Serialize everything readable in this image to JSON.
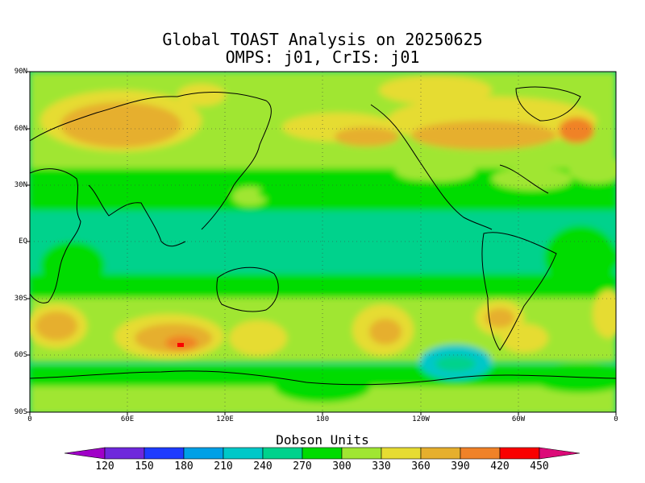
{
  "title": {
    "line1": "Global TOAST Analysis on 20250625",
    "line2": "OMPS: j01, CrIS: j01"
  },
  "colorbar": {
    "units": "Dobson Units",
    "levels": [
      "120",
      "150",
      "180",
      "210",
      "240",
      "270",
      "300",
      "330",
      "360",
      "390",
      "420",
      "450"
    ],
    "colors": [
      "#a000c8",
      "#6e28dc",
      "#1e3cff",
      "#00a0e6",
      "#00c8c8",
      "#00d28c",
      "#00dc00",
      "#a0e632",
      "#e6dc32",
      "#e6af2d",
      "#f08228",
      "#fa0000",
      "#dc0a78"
    ]
  },
  "axes": {
    "lat_labels": [
      "90N",
      "60N",
      "30N",
      "EQ",
      "30S",
      "60S",
      "90S"
    ],
    "lon_labels": [
      "0",
      "60E",
      "120E",
      "180",
      "120W",
      "60W",
      "0"
    ]
  },
  "map": {
    "projection": "cylindrical equidistant",
    "lon_range": [
      0,
      360
    ],
    "lat_range": [
      -90,
      90
    ],
    "field": "total column ozone",
    "grid": "dotted 30°"
  }
}
